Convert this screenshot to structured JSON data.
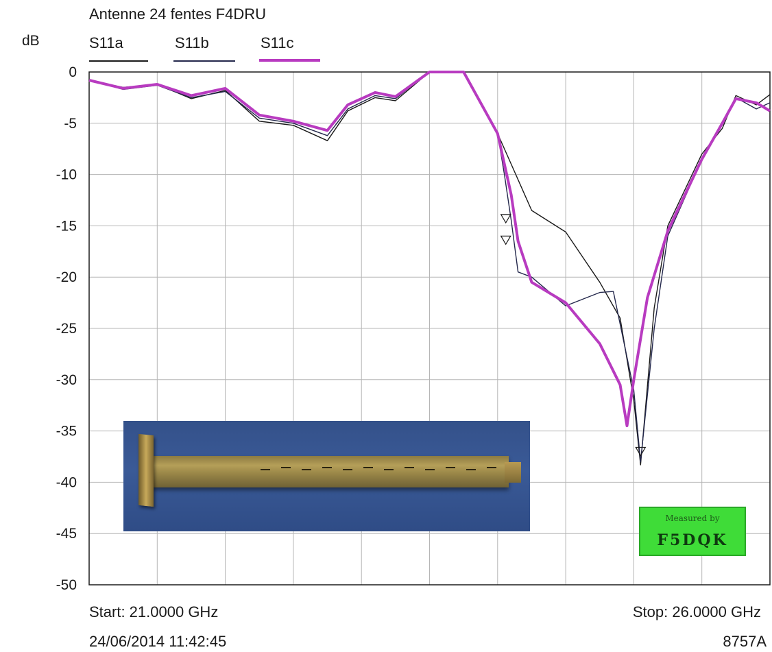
{
  "chart_data": {
    "type": "line",
    "title": "Antenne 24 fentes F4DRU",
    "ylabel": "dB",
    "ylim": [
      -50,
      0
    ],
    "xlim": [
      21.0,
      26.0
    ],
    "yticks": [
      "0",
      "-5",
      "-10",
      "-15",
      "-20",
      "-25",
      "-30",
      "-35",
      "-40",
      "-45",
      "-50"
    ],
    "grid": true,
    "start_label": "Start: 21.0000 GHz",
    "stop_label": "Stop: 26.0000 GHz",
    "timestamp": "24/06/2014 11:42:45",
    "instrument": "8757A",
    "series": [
      {
        "name": "S11a",
        "color": "#1a1a1a",
        "x": [
          21.0,
          21.25,
          21.5,
          21.75,
          22.0,
          22.25,
          22.5,
          22.75,
          22.9,
          23.1,
          23.25,
          23.5,
          23.75,
          24.0,
          24.1,
          24.25,
          24.5,
          24.75,
          24.9,
          25.0,
          25.05,
          25.15,
          25.25,
          25.5,
          25.65,
          25.75,
          25.9,
          26.0
        ],
        "y": [
          -0.8,
          -1.5,
          -1.2,
          -2.6,
          -1.8,
          -4.8,
          -5.2,
          -6.7,
          -3.8,
          -2.5,
          -2.8,
          0.0,
          0.0,
          -6.0,
          -9.0,
          -13.5,
          -15.6,
          -20.5,
          -24.0,
          -32.0,
          -38.3,
          -23.0,
          -15.0,
          -8.0,
          -5.5,
          -2.3,
          -3.2,
          -2.2
        ]
      },
      {
        "name": "S11b",
        "color": "#24284c",
        "x": [
          21.0,
          21.25,
          21.5,
          21.75,
          22.0,
          22.25,
          22.5,
          22.75,
          22.9,
          23.1,
          23.25,
          23.5,
          23.75,
          24.0,
          24.05,
          24.1,
          24.15,
          24.25,
          24.5,
          24.75,
          24.85,
          25.0,
          25.05,
          25.15,
          25.25,
          25.5,
          25.65,
          25.75,
          25.9,
          26.0
        ],
        "y": [
          -0.8,
          -1.7,
          -1.3,
          -2.5,
          -1.9,
          -4.5,
          -5.0,
          -6.2,
          -3.6,
          -2.3,
          -2.6,
          0.0,
          0.0,
          -6.0,
          -10.0,
          -14.5,
          -19.5,
          -20.0,
          -22.8,
          -21.5,
          -21.4,
          -31.0,
          -38.0,
          -25.0,
          -16.0,
          -8.5,
          -5.0,
          -2.5,
          -3.6,
          -3.0
        ]
      },
      {
        "name": "S11c",
        "color": "#b83bc0",
        "x": [
          21.0,
          21.25,
          21.5,
          21.75,
          22.0,
          22.25,
          22.5,
          22.75,
          22.9,
          23.1,
          23.25,
          23.5,
          23.75,
          24.0,
          24.1,
          24.15,
          24.25,
          24.5,
          24.75,
          24.9,
          24.95,
          25.0,
          25.1,
          25.25,
          25.5,
          25.65,
          25.75,
          25.9,
          26.0
        ],
        "y": [
          -0.8,
          -1.6,
          -1.2,
          -2.3,
          -1.6,
          -4.2,
          -4.8,
          -5.7,
          -3.2,
          -2.0,
          -2.4,
          0.0,
          0.0,
          -6.0,
          -12.0,
          -16.5,
          -20.5,
          -22.5,
          -26.5,
          -30.5,
          -34.5,
          -30.0,
          -22.0,
          -15.5,
          -8.5,
          -5.0,
          -2.6,
          -3.0,
          -3.8
        ]
      }
    ]
  },
  "photo": {
    "content": "24-slot waveguide antenna photo"
  },
  "badge": {
    "line1": "Measured by",
    "line2": "F5DQK"
  }
}
